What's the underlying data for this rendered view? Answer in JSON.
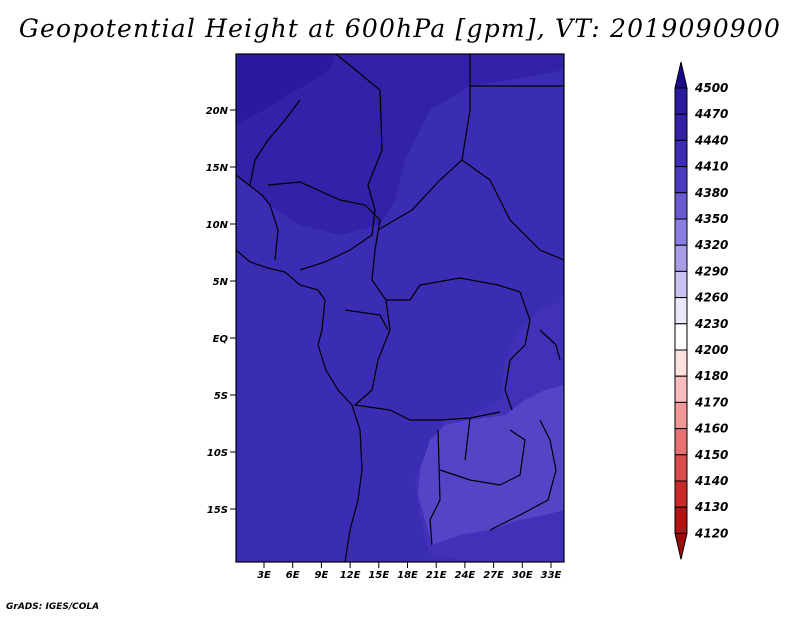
{
  "title": "Geopotential Height at 600hPa [gpm], VT: 2019090900",
  "footer": "GrADS: IGES/COLA",
  "map": {
    "lat_labels": [
      "20N",
      "15N",
      "10N",
      "5N",
      "EQ",
      "5S",
      "10S",
      "15S"
    ],
    "lon_labels": [
      "3E",
      "6E",
      "9E",
      "12E",
      "15E",
      "18E",
      "21E",
      "24E",
      "27E",
      "30E",
      "33E"
    ]
  },
  "colorbar": {
    "levels": [
      "4500",
      "4470",
      "4440",
      "4410",
      "4380",
      "4350",
      "4320",
      "4290",
      "4260",
      "4230",
      "4200",
      "4180",
      "4170",
      "4160",
      "4150",
      "4140",
      "4130",
      "4120"
    ],
    "colors": [
      "#1a0a8c",
      "#2a1a9c",
      "#3320a8",
      "#3b2cb4",
      "#4a3cc0",
      "#6a5ad0",
      "#8a7ee0",
      "#a89ee8",
      "#c8c2f0",
      "#ebe8fa",
      "#ffffff",
      "#fde0e0",
      "#f8bcbc",
      "#f09898",
      "#e47272",
      "#d84c4c",
      "#c82a2a",
      "#b01414",
      "#9a0c0c"
    ]
  },
  "regions": {
    "high_northwest": "#2a1aa0",
    "upper_band": "#3122a8",
    "main_field": "#3b2cb4",
    "west_coast": "#3e30b8",
    "southeast_low": "#6458d0"
  }
}
